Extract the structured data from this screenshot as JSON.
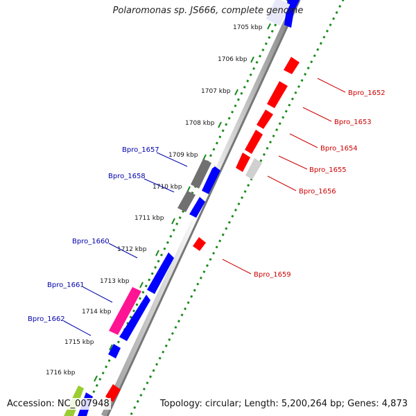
{
  "title": "Polaromonas sp. JS666, complete genome",
  "accession": "Accession: NC_007948",
  "summary": "Topology: circular; Length: 5,200,264 bp; Genes: 4,873",
  "ticks": [
    "1705 kbp",
    "1706 kbp",
    "1707 kbp",
    "1708 kbp",
    "1709 kbp",
    "1710 kbp",
    "1711 kbp",
    "1712 kbp",
    "1713 kbp",
    "1714 kbp",
    "1715 kbp",
    "1716 kbp"
  ],
  "genes_left": [
    "Bpro_1657",
    "Bpro_1658",
    "Bpro_1660",
    "Bpro_1661",
    "Bpro_1662"
  ],
  "genes_right": [
    "Bpro_1652",
    "Bpro_1653",
    "Bpro_1654",
    "Bpro_1655",
    "Bpro_1656",
    "Bpro_1659"
  ],
  "colors": {
    "forward_gene": "#0000ff",
    "reverse_gene": "#ff0000",
    "gray_gene": "#707070",
    "light_gray_gene": "#d0d0d0",
    "pink_gene": "#ff1493",
    "green_gene": "#9acd32",
    "left_label": "#0000aa",
    "right_label": "#cc0000",
    "dotted_ring": "#1a8a1a"
  }
}
